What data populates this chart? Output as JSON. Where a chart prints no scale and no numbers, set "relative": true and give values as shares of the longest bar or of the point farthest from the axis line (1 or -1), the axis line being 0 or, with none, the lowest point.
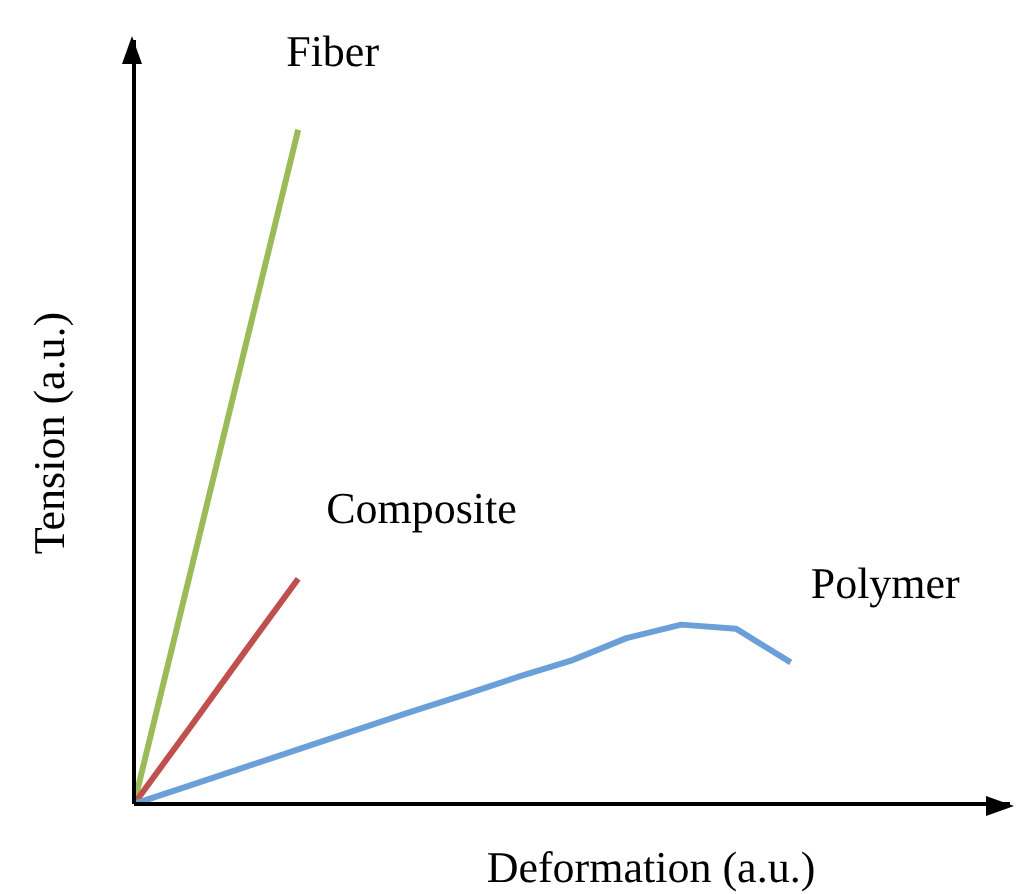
{
  "chart_data": {
    "type": "line",
    "relative": true,
    "xlabel": "Deformation  (a.u.)",
    "ylabel": "Tension  (a.u.)",
    "legend": false,
    "grid": false,
    "marker": "none",
    "line_style": "solid",
    "categories": [
      null,
      null,
      null,
      null,
      null,
      null,
      null,
      null,
      null,
      null,
      null,
      null,
      null
    ],
    "series": [
      {
        "name": "Fiber",
        "color": "#9bbb59",
        "values": [
          0,
          0.333,
          0.667,
          1,
          null,
          null,
          null,
          null,
          null,
          null,
          null,
          null,
          null
        ]
      },
      {
        "name": "Composite",
        "color": "#c0504d",
        "values": [
          0,
          0.111,
          0.223,
          0.334,
          null,
          null,
          null,
          null,
          null,
          null,
          null,
          null,
          null
        ]
      },
      {
        "name": "Polymer",
        "color": "#6a9fd8",
        "values": [
          0,
          0.027,
          0.054,
          0.081,
          0.108,
          0.135,
          0.161,
          0.188,
          0.213,
          0.246,
          0.266,
          0.26,
          0.21
        ]
      }
    ]
  }
}
